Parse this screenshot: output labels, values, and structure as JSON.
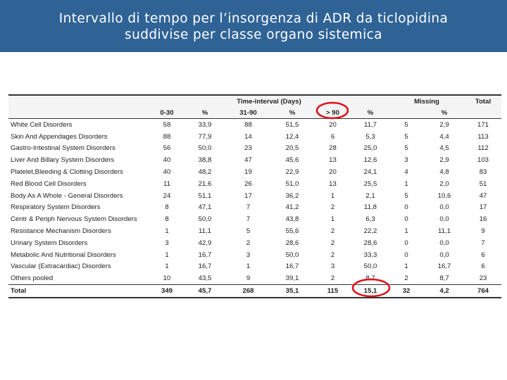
{
  "header": {
    "title_lines": [
      "Intervallo di tempo per l’insorgenza di ADR da ticlopidina",
      "suddivise per classe organo sistemica"
    ]
  },
  "table": {
    "group_headers": [
      "Time-interval (Days)",
      "Missing",
      "Total"
    ],
    "subheaders": [
      "0-30",
      "%",
      "31-90",
      "%",
      "> 90",
      "%",
      "%"
    ],
    "rows": [
      [
        "White Cell Disorders",
        "58",
        "33,9",
        "88",
        "51,5",
        "20",
        "11,7",
        "5",
        "2,9",
        "171"
      ],
      [
        "Skin And Appendages Disorders",
        "88",
        "77,9",
        "14",
        "12,4",
        "6",
        "5,3",
        "5",
        "4,4",
        "113"
      ],
      [
        "Gastro-Intestinal System Disorders",
        "56",
        "50,0",
        "23",
        "20,5",
        "28",
        "25,0",
        "5",
        "4,5",
        "112"
      ],
      [
        "Liver And Billary System Disorders",
        "40",
        "38,8",
        "47",
        "45,6",
        "13",
        "12,6",
        "3",
        "2,9",
        "103"
      ],
      [
        "Platelet,Bleeding & Clotting Disorders",
        "40",
        "48,2",
        "19",
        "22,9",
        "20",
        "24,1",
        "4",
        "4,8",
        "83"
      ],
      [
        "Red Blood Cell Disorders",
        "11",
        "21,6",
        "26",
        "51,0",
        "13",
        "25,5",
        "1",
        "2,0",
        "51"
      ],
      [
        "Body As A Whole - General Disorders",
        "24",
        "51,1",
        "17",
        "36,2",
        "1",
        "2,1",
        "5",
        "10,6",
        "47"
      ],
      [
        "Respiratory System Disorders",
        "8",
        "47,1",
        "7",
        "41,2",
        "2",
        "11,8",
        "0",
        "0,0",
        "17"
      ],
      [
        "Centr & Periph Nervous System Disorders",
        "8",
        "50,0",
        "7",
        "43,8",
        "1",
        "6,3",
        "0",
        "0,0",
        "16"
      ],
      [
        "Resistance Mechanism Disorders",
        "1",
        "11,1",
        "5",
        "55,6",
        "2",
        "22,2",
        "1",
        "11,1",
        "9"
      ],
      [
        "Urinary System Disorders",
        "3",
        "42,9",
        "2",
        "28,6",
        "2",
        "28,6",
        "0",
        "0,0",
        "7"
      ],
      [
        "Metabolic And Nutritional Disorders",
        "1",
        "16,7",
        "3",
        "50,0",
        "2",
        "33,3",
        "0",
        "0,0",
        "6"
      ],
      [
        "Vascular (Extracardiac) Disorders",
        "1",
        "16,7",
        "1",
        "16,7",
        "3",
        "50,0",
        "1",
        "16,7",
        "6"
      ],
      [
        "Others pooled",
        "10",
        "43,5",
        "9",
        "39,1",
        "2",
        "8,7",
        "2",
        "8,7",
        "23"
      ]
    ],
    "total": [
      "Total",
      "349",
      "45,7",
      "268",
      "35,1",
      "115",
      "15,1",
      "32",
      "4,2",
      "764"
    ]
  }
}
